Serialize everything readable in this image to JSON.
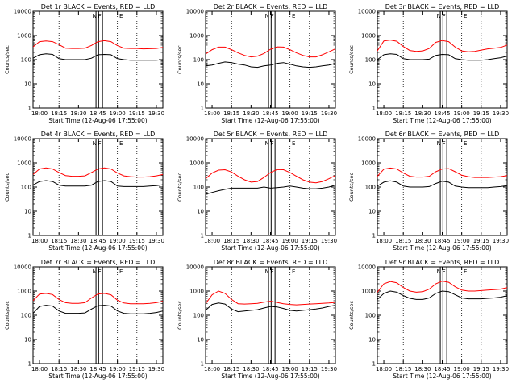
{
  "colors": {
    "background": "#ffffff",
    "axes": "#000000",
    "events": "#000000",
    "lld": "#ff0000"
  },
  "common": {
    "ylabel": "Counts/sec",
    "xlabel": "Start Time (12-Aug-06 17:55:00)",
    "x_ticks": [
      "18:00",
      "18:15",
      "18:30",
      "18:45",
      "19:00",
      "19:15",
      "19:30"
    ],
    "y_ticks": [
      "1",
      "10",
      "100",
      "1000",
      "10000"
    ],
    "annotation_top": "N",
    "annotation_marker": "F",
    "annotation_right": "E"
  },
  "chart_data": [
    {
      "type": "line",
      "title": "Det 1r BLACK = Events, RED = LLD",
      "x_minutes_from": "17:55",
      "ylog": true,
      "ylim": [
        1,
        10000
      ],
      "x": [
        0,
        5,
        10,
        15,
        20,
        25,
        30,
        35,
        40,
        45,
        50,
        55,
        60,
        65,
        70,
        75,
        80,
        85,
        90,
        95,
        100
      ],
      "series": [
        {
          "name": "Events",
          "values": [
            115,
            160,
            175,
            165,
            110,
            100,
            100,
            100,
            100,
            115,
            160,
            165,
            160,
            110,
            100,
            95,
            95,
            95,
            95,
            95,
            100
          ]
        },
        {
          "name": "LLD",
          "values": [
            340,
            560,
            600,
            560,
            420,
            300,
            290,
            290,
            300,
            390,
            560,
            610,
            560,
            380,
            300,
            290,
            290,
            280,
            285,
            290,
            320
          ]
        }
      ]
    },
    {
      "type": "line",
      "title": "Det 2r BLACK = Events, RED = LLD",
      "x_minutes_from": "17:55",
      "ylog": true,
      "ylim": [
        1,
        10000
      ],
      "x": [
        0,
        5,
        10,
        15,
        20,
        25,
        30,
        35,
        40,
        45,
        50,
        55,
        60,
        65,
        70,
        75,
        80,
        85,
        90,
        95,
        100
      ],
      "series": [
        {
          "name": "Events",
          "values": [
            55,
            60,
            70,
            80,
            75,
            65,
            60,
            50,
            48,
            55,
            60,
            70,
            75,
            65,
            55,
            50,
            48,
            50,
            55,
            60,
            70
          ]
        },
        {
          "name": "LLD",
          "values": [
            170,
            260,
            330,
            330,
            260,
            190,
            150,
            130,
            140,
            180,
            270,
            340,
            330,
            260,
            190,
            150,
            130,
            130,
            160,
            210,
            280
          ]
        }
      ]
    },
    {
      "type": "line",
      "title": "Det 3r BLACK = Events, RED = LLD",
      "x_minutes_from": "17:55",
      "ylog": true,
      "ylim": [
        1,
        10000
      ],
      "x": [
        0,
        5,
        10,
        15,
        20,
        25,
        30,
        35,
        40,
        45,
        50,
        55,
        60,
        65,
        70,
        75,
        80,
        85,
        90,
        95,
        100
      ],
      "series": [
        {
          "name": "Events",
          "values": [
            100,
            160,
            175,
            165,
            110,
            100,
            100,
            100,
            105,
            150,
            165,
            160,
            110,
            100,
            95,
            95,
            95,
            100,
            110,
            120,
            140
          ]
        },
        {
          "name": "LLD",
          "values": [
            230,
            600,
            650,
            580,
            350,
            240,
            220,
            230,
            290,
            520,
            620,
            560,
            330,
            230,
            210,
            220,
            250,
            280,
            300,
            320,
            400
          ]
        }
      ]
    },
    {
      "type": "line",
      "title": "Det 4r BLACK = Events, RED = LLD",
      "x_minutes_from": "17:55",
      "ylog": true,
      "ylim": [
        1,
        10000
      ],
      "x": [
        0,
        5,
        10,
        15,
        20,
        25,
        30,
        35,
        40,
        45,
        50,
        55,
        60,
        65,
        70,
        75,
        80,
        85,
        90,
        95,
        100
      ],
      "series": [
        {
          "name": "Events",
          "values": [
            120,
            170,
            185,
            170,
            120,
            110,
            110,
            110,
            110,
            120,
            170,
            185,
            170,
            110,
            105,
            105,
            105,
            105,
            110,
            115,
            125
          ]
        },
        {
          "name": "LLD",
          "values": [
            330,
            560,
            620,
            560,
            400,
            300,
            280,
            280,
            290,
            400,
            560,
            620,
            560,
            380,
            290,
            270,
            260,
            260,
            270,
            290,
            330
          ]
        }
      ]
    },
    {
      "type": "line",
      "title": "Det 5r BLACK = Events, RED = LLD",
      "x_minutes_from": "17:55",
      "ylog": true,
      "ylim": [
        1,
        10000
      ],
      "x": [
        0,
        5,
        10,
        15,
        20,
        25,
        30,
        35,
        40,
        45,
        50,
        55,
        60,
        65,
        70,
        75,
        80,
        85,
        90,
        95,
        100
      ],
      "series": [
        {
          "name": "Events",
          "values": [
            50,
            60,
            70,
            80,
            90,
            90,
            90,
            90,
            90,
            100,
            90,
            95,
            100,
            110,
            100,
            90,
            85,
            85,
            90,
            100,
            120
          ]
        },
        {
          "name": "LLD",
          "values": [
            220,
            380,
            500,
            520,
            420,
            280,
            200,
            160,
            170,
            250,
            400,
            530,
            520,
            400,
            280,
            200,
            160,
            150,
            170,
            220,
            300
          ]
        }
      ]
    },
    {
      "type": "line",
      "title": "Det 6r BLACK = Events, RED = LLD",
      "x_minutes_from": "17:55",
      "ylog": true,
      "ylim": [
        1,
        10000
      ],
      "x": [
        0,
        5,
        10,
        15,
        20,
        25,
        30,
        35,
        40,
        45,
        50,
        55,
        60,
        65,
        70,
        75,
        80,
        85,
        90,
        95,
        100
      ],
      "series": [
        {
          "name": "Events",
          "values": [
            110,
            160,
            180,
            160,
            110,
            100,
            100,
            100,
            105,
            140,
            175,
            160,
            110,
            100,
            95,
            95,
            95,
            95,
            100,
            105,
            115
          ]
        },
        {
          "name": "LLD",
          "values": [
            280,
            550,
            610,
            560,
            380,
            280,
            260,
            260,
            280,
            430,
            560,
            580,
            430,
            310,
            270,
            250,
            250,
            250,
            260,
            270,
            300
          ]
        }
      ]
    },
    {
      "type": "line",
      "title": "Det 7r BLACK = Events, RED = LLD",
      "x_minutes_from": "17:55",
      "ylog": true,
      "ylim": [
        1,
        10000
      ],
      "x": [
        0,
        5,
        10,
        15,
        20,
        25,
        30,
        35,
        40,
        45,
        50,
        55,
        60,
        65,
        70,
        75,
        80,
        85,
        90,
        95,
        100
      ],
      "series": [
        {
          "name": "Events",
          "values": [
            120,
            230,
            260,
            240,
            150,
            120,
            120,
            120,
            125,
            180,
            250,
            260,
            240,
            150,
            120,
            115,
            115,
            115,
            120,
            130,
            150
          ]
        },
        {
          "name": "LLD",
          "values": [
            400,
            750,
            800,
            720,
            450,
            330,
            310,
            310,
            330,
            520,
            760,
            800,
            700,
            420,
            320,
            300,
            300,
            300,
            310,
            330,
            380
          ]
        }
      ]
    },
    {
      "type": "line",
      "title": "Det 8r BLACK = Events, RED = LLD",
      "x_minutes_from": "17:55",
      "ylog": true,
      "ylim": [
        1,
        10000
      ],
      "x": [
        0,
        5,
        10,
        15,
        20,
        25,
        30,
        35,
        40,
        45,
        50,
        55,
        60,
        65,
        70,
        75,
        80,
        85,
        90,
        95,
        100
      ],
      "series": [
        {
          "name": "Events",
          "values": [
            160,
            280,
            320,
            290,
            180,
            140,
            150,
            160,
            170,
            200,
            230,
            220,
            190,
            160,
            150,
            160,
            170,
            180,
            200,
            230,
            260
          ]
        },
        {
          "name": "LLD",
          "values": [
            300,
            700,
            1000,
            800,
            450,
            300,
            290,
            300,
            310,
            350,
            380,
            340,
            300,
            280,
            270,
            280,
            290,
            300,
            310,
            320,
            340
          ]
        }
      ]
    },
    {
      "type": "line",
      "title": "Det 9r BLACK = Events, RED = LLD",
      "x_minutes_from": "17:55",
      "ylog": true,
      "ylim": [
        1,
        10000
      ],
      "x": [
        0,
        5,
        10,
        15,
        20,
        25,
        30,
        35,
        40,
        45,
        50,
        55,
        60,
        65,
        70,
        75,
        80,
        85,
        90,
        95,
        100
      ],
      "series": [
        {
          "name": "Events",
          "values": [
            450,
            800,
            1000,
            900,
            650,
            500,
            450,
            450,
            520,
            800,
            1000,
            950,
            700,
            520,
            480,
            480,
            480,
            500,
            520,
            560,
            650
          ]
        },
        {
          "name": "LLD",
          "values": [
            900,
            2000,
            2500,
            2200,
            1400,
            1000,
            900,
            950,
            1200,
            2000,
            2600,
            2300,
            1500,
            1100,
            1000,
            1000,
            1050,
            1100,
            1150,
            1200,
            1400
          ]
        }
      ]
    }
  ]
}
